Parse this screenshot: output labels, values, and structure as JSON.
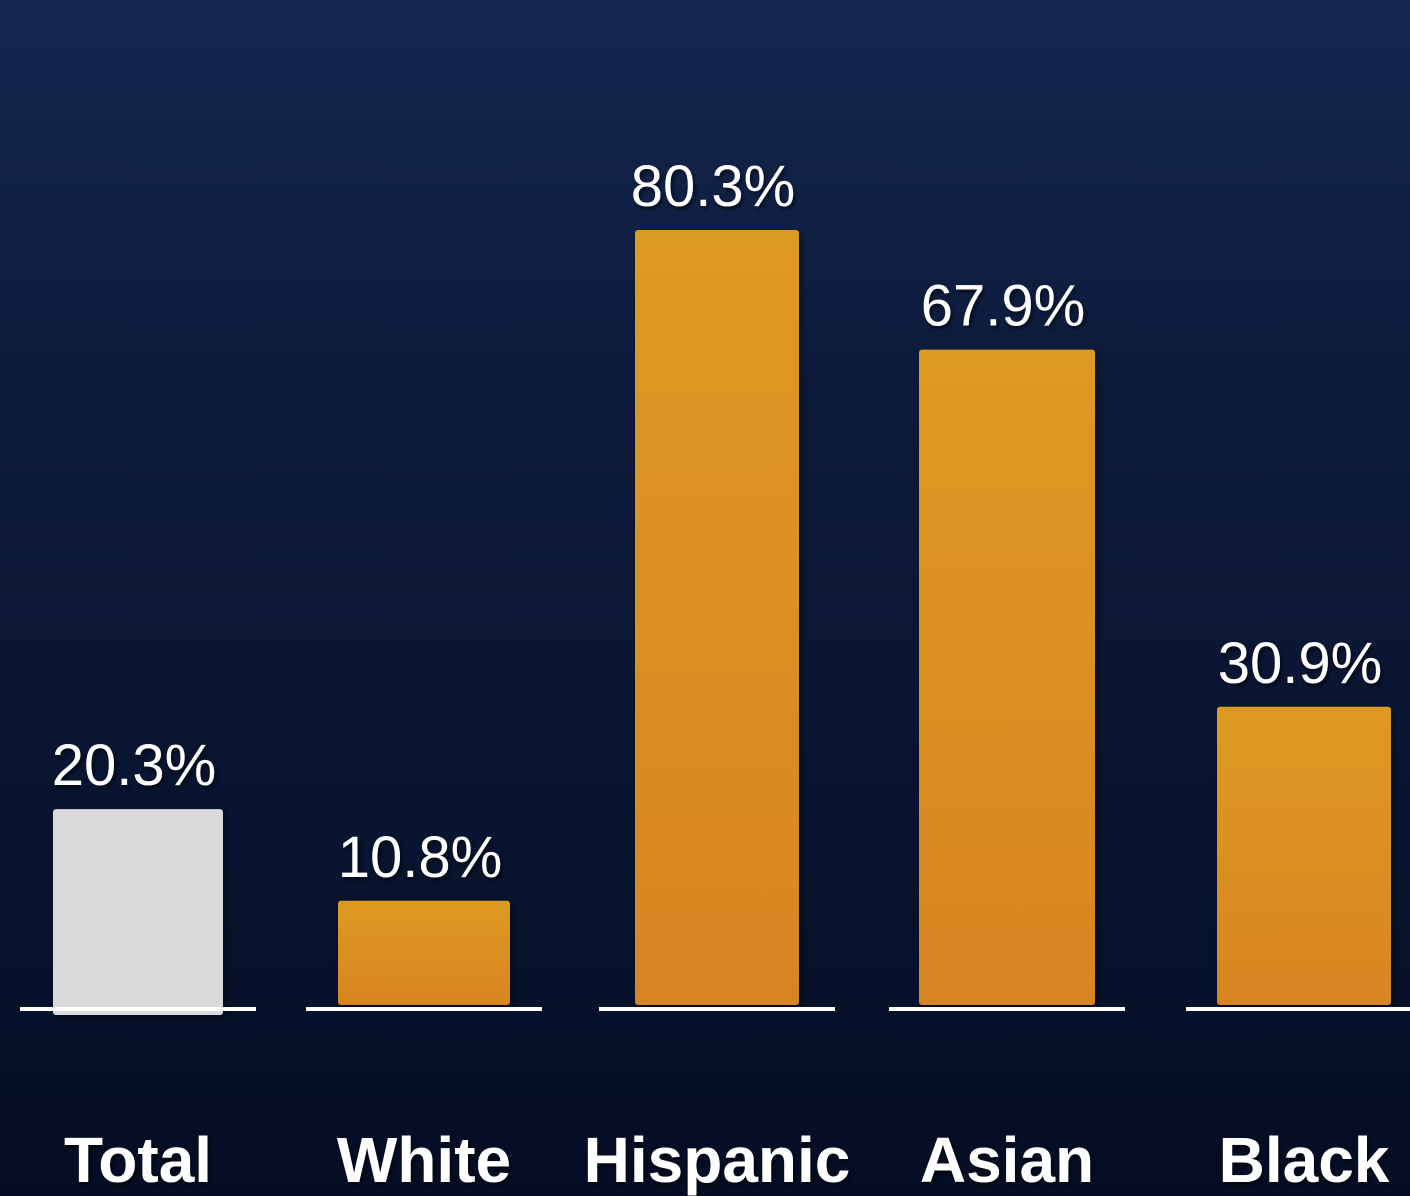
{
  "chart_data": {
    "type": "bar",
    "title": "",
    "xlabel": "",
    "ylabel": "",
    "categories": [
      "Total",
      "White",
      "Hispanic",
      "Asian",
      "Black"
    ],
    "values": [
      20.3,
      10.8,
      80.3,
      67.9,
      30.9
    ],
    "value_labels": [
      "20.3%",
      "10.8%",
      "80.3%",
      "67.9%",
      "30.9%"
    ],
    "highlight_category": "Total",
    "colors": {
      "total_bar": "#d9d9d9",
      "group_bar": "#d98424",
      "group_bar_top": "#dd9a24",
      "baseline": "#ffffff",
      "text": "#ffffff",
      "background_top": "#14274f",
      "background_bottom": "#050d24"
    },
    "ylim": [
      0,
      80.3
    ],
    "grid": false,
    "legend": "none"
  }
}
